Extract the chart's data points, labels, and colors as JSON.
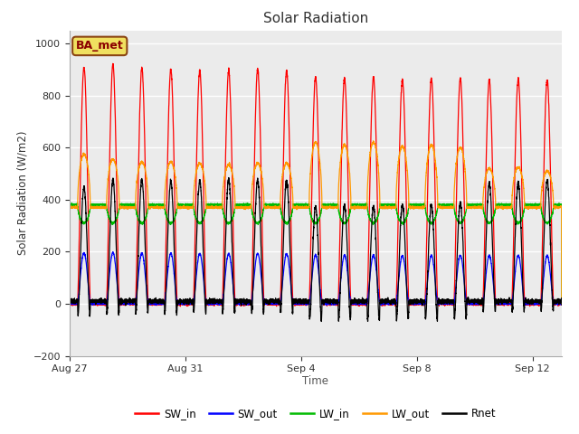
{
  "title": "Solar Radiation",
  "ylabel": "Solar Radiation (W/m2)",
  "xlabel": "Time",
  "ylim": [
    -200,
    1050
  ],
  "yticks": [
    -200,
    0,
    200,
    400,
    600,
    800,
    1000
  ],
  "n_days": 17,
  "points_per_day": 288,
  "plot_bg_color": "#ebebeb",
  "fig_bg_color": "#ffffff",
  "station_label": "BA_met",
  "series": {
    "SW_in": {
      "color": "#ff0000"
    },
    "SW_out": {
      "color": "#0000ff"
    },
    "LW_in": {
      "color": "#00bb00"
    },
    "LW_out": {
      "color": "#ff9900"
    },
    "Rnet": {
      "color": "#000000"
    }
  },
  "sw_in_peaks": [
    910,
    920,
    905,
    900,
    895,
    895,
    900,
    895,
    870,
    865,
    870,
    860,
    865,
    865,
    860,
    865,
    860
  ],
  "lw_out_peaks": [
    575,
    555,
    545,
    545,
    540,
    535,
    540,
    540,
    620,
    610,
    620,
    605,
    610,
    600,
    520,
    525,
    510
  ],
  "lw_in_night": 380,
  "lw_in_day_dip": 310,
  "night_rnet": -80,
  "xtick_positions": [
    0,
    4,
    8,
    12,
    16
  ],
  "xtick_labels": [
    "Aug 27",
    "Aug 31",
    "Sep 4",
    "Sep 8",
    "Sep 12"
  ]
}
